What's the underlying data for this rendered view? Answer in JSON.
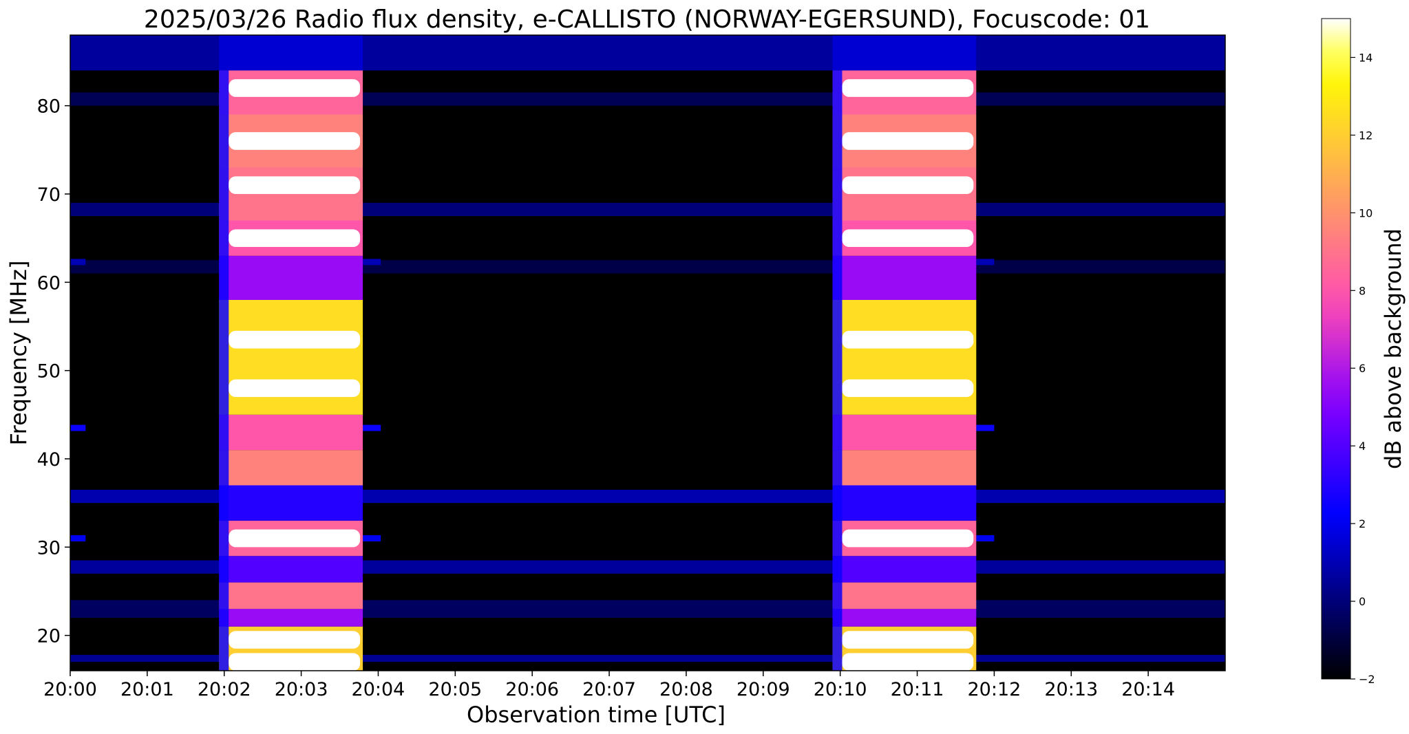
{
  "chart_data": {
    "type": "heatmap",
    "title": "2025/03/26  Radio flux density, e-CALLISTO (NORWAY-EGERSUND), Focuscode: 01",
    "xlabel": "Observation time [UTC]",
    "ylabel": "Frequency [MHz]",
    "colorbar_label": "dB above background",
    "colormap": "gnuplot2",
    "x_range": [
      "20:00:00",
      "20:15:00"
    ],
    "y_range": [
      16,
      88
    ],
    "value_range": [
      -2,
      15
    ],
    "x_ticks": [
      "20:00",
      "20:01",
      "20:02",
      "20:03",
      "20:04",
      "20:05",
      "20:06",
      "20:07",
      "20:08",
      "20:09",
      "20:10",
      "20:11",
      "20:12",
      "20:13",
      "20:14"
    ],
    "y_ticks": [
      20,
      30,
      40,
      50,
      60,
      70,
      80
    ],
    "colorbar_ticks": [
      -2,
      0,
      2,
      4,
      6,
      8,
      10,
      12,
      14
    ],
    "events": [
      {
        "start": "20:01:56",
        "end": "20:03:48",
        "peak_db": 15
      },
      {
        "start": "20:09:54",
        "end": "20:11:46",
        "peak_db": 15
      }
    ],
    "bright_lines_mhz": [
      17,
      19.5,
      31,
      48,
      53.5,
      65,
      71,
      76,
      82
    ]
  }
}
